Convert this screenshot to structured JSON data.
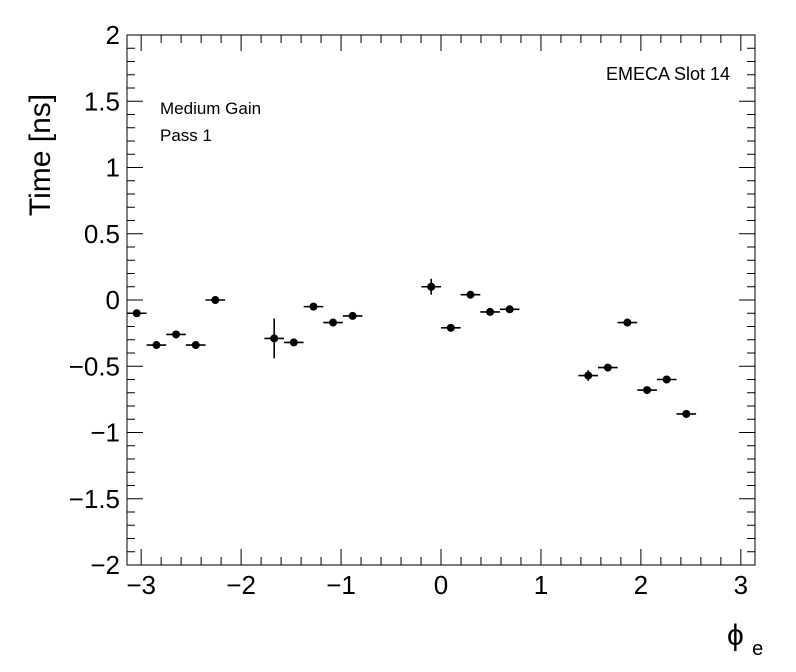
{
  "chart_data": {
    "type": "scatter",
    "xlabel": "ϕ",
    "xlabel_subscript": "e",
    "ylabel": "Time [ns]",
    "xlim": [
      -3.1416,
      3.1416
    ],
    "ylim": [
      -2,
      2
    ],
    "x_tick_values": [
      -3,
      -2,
      -1,
      0,
      1,
      2,
      3
    ],
    "x_tick_labels": [
      "−3",
      "−2",
      "−1",
      "0",
      "1",
      "2",
      "3"
    ],
    "y_tick_values": [
      2,
      1.5,
      1,
      0.5,
      0,
      -0.5,
      -1,
      -1.5,
      -2
    ],
    "y_tick_labels": [
      "2",
      "1.5",
      "1",
      "0.5",
      "0",
      "−0.5",
      "−1",
      "−1.5",
      "−2"
    ],
    "annotations": {
      "gain": "Medium Gain",
      "pass": "Pass 1",
      "slot": "EMECA Slot 14"
    },
    "grid": false,
    "bin_half_width": 0.0982,
    "points": [
      {
        "x": -3.044,
        "y": -0.1,
        "yerr": 0.015
      },
      {
        "x": -2.847,
        "y": -0.34,
        "yerr": 0.015
      },
      {
        "x": -2.651,
        "y": -0.26,
        "yerr": 0.015
      },
      {
        "x": -2.454,
        "y": -0.34,
        "yerr": 0.015
      },
      {
        "x": -2.258,
        "y": 0.0,
        "yerr": 0.015
      },
      {
        "x": -1.669,
        "y": -0.29,
        "yerr": 0.15
      },
      {
        "x": -1.473,
        "y": -0.32,
        "yerr": 0.015
      },
      {
        "x": -1.276,
        "y": -0.05,
        "yerr": 0.015
      },
      {
        "x": -1.08,
        "y": -0.17,
        "yerr": 0.015
      },
      {
        "x": -0.884,
        "y": -0.12,
        "yerr": 0.015
      },
      {
        "x": -0.098,
        "y": 0.1,
        "yerr": 0.06
      },
      {
        "x": 0.098,
        "y": -0.21,
        "yerr": 0.015
      },
      {
        "x": 0.295,
        "y": 0.04,
        "yerr": 0.015
      },
      {
        "x": 0.491,
        "y": -0.09,
        "yerr": 0.015
      },
      {
        "x": 0.687,
        "y": -0.07,
        "yerr": 0.015
      },
      {
        "x": 1.473,
        "y": -0.57,
        "yerr": 0.04
      },
      {
        "x": 1.669,
        "y": -0.51,
        "yerr": 0.015
      },
      {
        "x": 1.865,
        "y": -0.17,
        "yerr": 0.015
      },
      {
        "x": 2.062,
        "y": -0.68,
        "yerr": 0.015
      },
      {
        "x": 2.258,
        "y": -0.6,
        "yerr": 0.015
      },
      {
        "x": 2.454,
        "y": -0.86,
        "yerr": 0.02
      }
    ]
  }
}
